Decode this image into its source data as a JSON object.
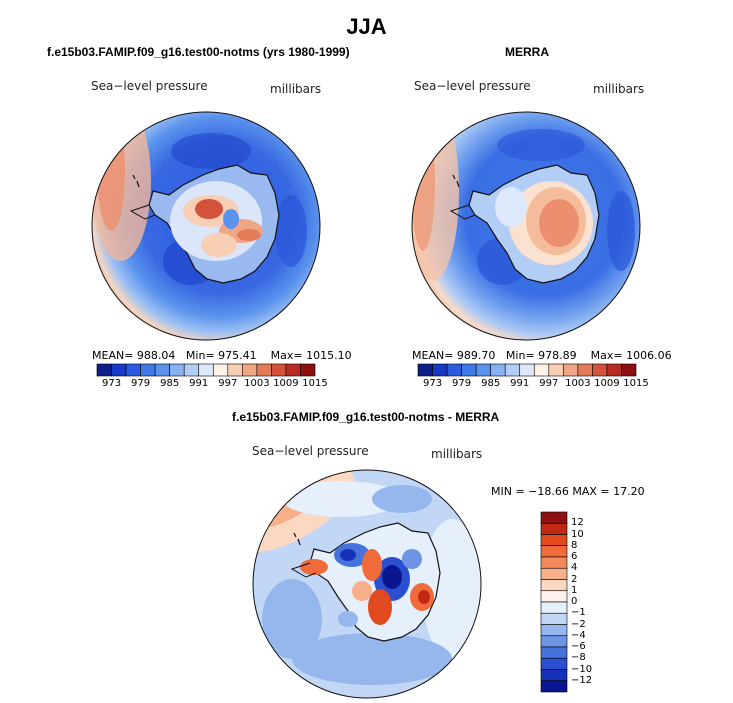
{
  "title": "JJA",
  "panels": [
    {
      "title": "f.e15b03.FAMIP.f09_g16.test00-notms (yrs 1980-1999)",
      "variable": "Sea−level pressure",
      "units": "millibars",
      "mean_label": "MEAN=",
      "mean": "988.04",
      "min_label": "Min=",
      "min": "975.41",
      "max_label": "Max=",
      "max": "1015.10"
    },
    {
      "title": "MERRA",
      "variable": "Sea−level pressure",
      "units": "millibars",
      "mean_label": "MEAN=",
      "mean": "989.70",
      "min_label": "Min=",
      "min": "978.89",
      "max_label": "Max=",
      "max": "1006.06"
    }
  ],
  "diff_panel": {
    "title": "f.e15b03.FAMIP.f09_g16.test00-notms - MERRA",
    "variable": "Sea−level pressure",
    "units": "millibars",
    "minmax_text": "MIN = −18.66  MAX =   17.20"
  },
  "colorbar": {
    "ticks": [
      "973",
      "979",
      "985",
      "991",
      "997",
      "1003",
      "1009",
      "1015"
    ],
    "colors": [
      "#0b1e8c",
      "#1838c8",
      "#2a5ae0",
      "#3f78e8",
      "#5a92ec",
      "#86b2f2",
      "#b2cdf6",
      "#dde9fb",
      "#fdf1e8",
      "#f8cfb4",
      "#f0a684",
      "#e47b58",
      "#d4513a",
      "#b82a22",
      "#8c1010"
    ]
  },
  "diff_colorbar": {
    "ticks": [
      "12",
      "10",
      "8",
      "6",
      "4",
      "2",
      "1",
      "0",
      "−1",
      "−2",
      "−4",
      "−6",
      "−8",
      "−10",
      "−12"
    ],
    "colors": [
      "#8e1212",
      "#c02a14",
      "#e04a1e",
      "#f06a3a",
      "#f48a5c",
      "#f8b08a",
      "#fbd8c2",
      "#fdf3ec",
      "#e6effc",
      "#c2d6f6",
      "#96b6ee",
      "#6e94e6",
      "#4672dc",
      "#2a4fd0",
      "#1632b6",
      "#0a1690"
    ]
  }
}
